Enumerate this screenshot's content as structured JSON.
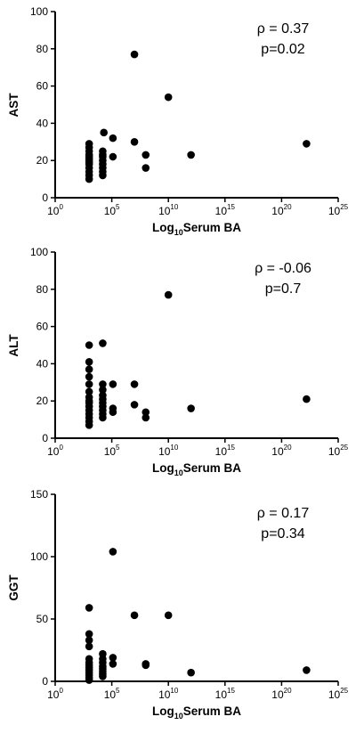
{
  "chart_data": [
    {
      "type": "scatter",
      "ylabel": "AST",
      "xlabel": {
        "main": "Log",
        "sub": "10",
        "rest": "Serum BA"
      },
      "xscale": "log",
      "xlim": [
        "10^0",
        "10^25"
      ],
      "ylim": [
        0,
        100
      ],
      "x_ticks": [
        {
          "base": "10",
          "exp": "0"
        },
        {
          "base": "10",
          "exp": "5"
        },
        {
          "base": "10",
          "exp": "10"
        },
        {
          "base": "10",
          "exp": "15"
        },
        {
          "base": "10",
          "exp": "20"
        },
        {
          "base": "10",
          "exp": "25"
        }
      ],
      "y_ticks": [
        "0",
        "20",
        "40",
        "60",
        "80",
        "100"
      ],
      "annotations": [
        "ρ = 0.37",
        "p=0.02"
      ],
      "grid": false,
      "points_log10x": [
        [
          3,
          10
        ],
        [
          3,
          12
        ],
        [
          3,
          14
        ],
        [
          3,
          16
        ],
        [
          3,
          18
        ],
        [
          3,
          19
        ],
        [
          3,
          20
        ],
        [
          3,
          21
        ],
        [
          3,
          22
        ],
        [
          3,
          23
        ],
        [
          3,
          25
        ],
        [
          3,
          27
        ],
        [
          3,
          29
        ],
        [
          4.2,
          12
        ],
        [
          4.2,
          14
        ],
        [
          4.2,
          16
        ],
        [
          4.2,
          18
        ],
        [
          4.2,
          20
        ],
        [
          4.2,
          22
        ],
        [
          4.2,
          23
        ],
        [
          4.2,
          25
        ],
        [
          4.3,
          35
        ],
        [
          5.1,
          22
        ],
        [
          5.1,
          32
        ],
        [
          7,
          30
        ],
        [
          7,
          77
        ],
        [
          8,
          23
        ],
        [
          8,
          16
        ],
        [
          10,
          54
        ],
        [
          12,
          23
        ],
        [
          22.2,
          29
        ]
      ]
    },
    {
      "type": "scatter",
      "ylabel": "ALT",
      "xlabel": {
        "main": "Log",
        "sub": "10",
        "rest": "Serum BA"
      },
      "xscale": "log",
      "xlim": [
        "10^0",
        "10^25"
      ],
      "ylim": [
        0,
        100
      ],
      "x_ticks": [
        {
          "base": "10",
          "exp": "0"
        },
        {
          "base": "10",
          "exp": "5"
        },
        {
          "base": "10",
          "exp": "10"
        },
        {
          "base": "10",
          "exp": "15"
        },
        {
          "base": "10",
          "exp": "20"
        },
        {
          "base": "10",
          "exp": "25"
        }
      ],
      "y_ticks": [
        "0",
        "20",
        "40",
        "60",
        "80",
        "100"
      ],
      "annotations": [
        "ρ = -0.06",
        "p=0.7"
      ],
      "grid": false,
      "points_log10x": [
        [
          3,
          7
        ],
        [
          3,
          9
        ],
        [
          3,
          11
        ],
        [
          3,
          13
        ],
        [
          3,
          15
        ],
        [
          3,
          17
        ],
        [
          3,
          19
        ],
        [
          3,
          20
        ],
        [
          3,
          22
        ],
        [
          3,
          25
        ],
        [
          3,
          29
        ],
        [
          3,
          33
        ],
        [
          3,
          37
        ],
        [
          3,
          41
        ],
        [
          3,
          50
        ],
        [
          4.2,
          11
        ],
        [
          4.2,
          13
        ],
        [
          4.2,
          15
        ],
        [
          4.2,
          17
        ],
        [
          4.2,
          19
        ],
        [
          4.2,
          21
        ],
        [
          4.2,
          23
        ],
        [
          4.2,
          26
        ],
        [
          4.2,
          29
        ],
        [
          4.2,
          51
        ],
        [
          5.1,
          14
        ],
        [
          5.1,
          16
        ],
        [
          5.1,
          29
        ],
        [
          7,
          18
        ],
        [
          7,
          29
        ],
        [
          8,
          11
        ],
        [
          8,
          14
        ],
        [
          10,
          77
        ],
        [
          12,
          16
        ],
        [
          22.2,
          21
        ]
      ]
    },
    {
      "type": "scatter",
      "ylabel": "GGT",
      "xlabel": {
        "main": "Log",
        "sub": "10",
        "rest": "Serum BA"
      },
      "xscale": "log",
      "xlim": [
        "10^0",
        "10^25"
      ],
      "ylim": [
        0,
        150
      ],
      "x_ticks": [
        {
          "base": "10",
          "exp": "0"
        },
        {
          "base": "10",
          "exp": "5"
        },
        {
          "base": "10",
          "exp": "10"
        },
        {
          "base": "10",
          "exp": "15"
        },
        {
          "base": "10",
          "exp": "20"
        },
        {
          "base": "10",
          "exp": "25"
        }
      ],
      "y_ticks": [
        "0",
        "50",
        "100",
        "150"
      ],
      "annotations": [
        "ρ = 0.17",
        "p=0.34"
      ],
      "grid": false,
      "points_log10x": [
        [
          3,
          1
        ],
        [
          3,
          3
        ],
        [
          3,
          5
        ],
        [
          3,
          7
        ],
        [
          3,
          9
        ],
        [
          3,
          11
        ],
        [
          3,
          13
        ],
        [
          3,
          15
        ],
        [
          3,
          18
        ],
        [
          3,
          28
        ],
        [
          3,
          33
        ],
        [
          3,
          38
        ],
        [
          3,
          59
        ],
        [
          4.2,
          4
        ],
        [
          4.2,
          6
        ],
        [
          4.2,
          8
        ],
        [
          4.2,
          10
        ],
        [
          4.2,
          12
        ],
        [
          4.2,
          15
        ],
        [
          4.2,
          18
        ],
        [
          4.2,
          22
        ],
        [
          5.1,
          14
        ],
        [
          5.1,
          19
        ],
        [
          5.1,
          104
        ],
        [
          7,
          53
        ],
        [
          8,
          13
        ],
        [
          8,
          14
        ],
        [
          10,
          53
        ],
        [
          12,
          7
        ],
        [
          22.2,
          9
        ]
      ]
    }
  ]
}
